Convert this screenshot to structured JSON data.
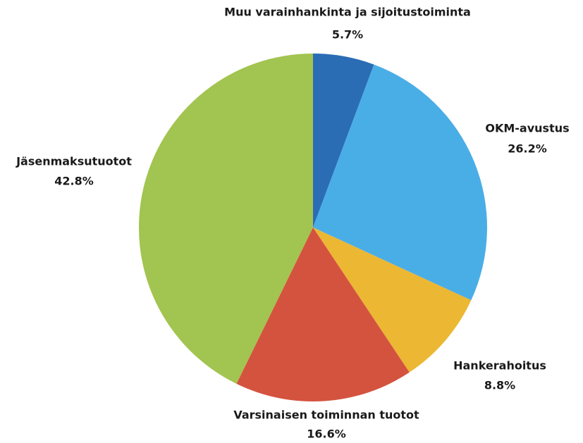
{
  "chart_data": {
    "type": "pie",
    "categories": [
      "Muu varainhankinta ja sijoitustoiminta",
      "OKM-avustus",
      "Hankerahoitus",
      "Varsinaisen toiminnan tuotot",
      "Jäsenmaksutuotot"
    ],
    "values": [
      5.7,
      26.2,
      8.8,
      16.6,
      42.8
    ],
    "value_labels": [
      "5.7%",
      "26.2%",
      "8.8%",
      "16.6%",
      "42.8%"
    ],
    "colors": [
      "#2a6db5",
      "#4aaee6",
      "#ecb732",
      "#d4533e",
      "#a2c450"
    ]
  }
}
